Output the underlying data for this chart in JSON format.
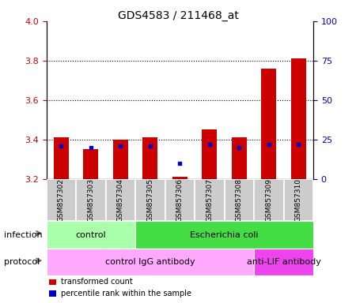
{
  "title": "GDS4583 / 211468_at",
  "samples": [
    "GSM857302",
    "GSM857303",
    "GSM857304",
    "GSM857305",
    "GSM857306",
    "GSM857307",
    "GSM857308",
    "GSM857309",
    "GSM857310"
  ],
  "transformed_count": [
    3.41,
    3.35,
    3.4,
    3.41,
    3.21,
    3.45,
    3.41,
    3.76,
    3.81
  ],
  "percentile_rank": [
    21,
    20,
    21,
    21,
    10,
    22,
    20,
    22,
    22
  ],
  "ylim_left": [
    3.2,
    4.0
  ],
  "ylim_right": [
    0,
    100
  ],
  "yticks_left": [
    3.2,
    3.4,
    3.6,
    3.8,
    4.0
  ],
  "yticks_right": [
    0,
    25,
    50,
    75,
    100
  ],
  "infection_groups": [
    {
      "label": "control",
      "start": 0,
      "end": 3,
      "color": "#aaffaa"
    },
    {
      "label": "Escherichia coli",
      "start": 3,
      "end": 9,
      "color": "#44dd44"
    }
  ],
  "protocol_groups": [
    {
      "label": "control IgG antibody",
      "start": 0,
      "end": 7,
      "color": "#ffaaff"
    },
    {
      "label": "anti-LIF antibody",
      "start": 7,
      "end": 9,
      "color": "#ee44ee"
    }
  ],
  "legend_red_label": "transformed count",
  "legend_blue_label": "percentile rank within the sample",
  "bar_color": "#cc0000",
  "dot_color": "#0000cc",
  "bar_width": 0.5,
  "tick_color_left": "#cc0000",
  "tick_color_right": "#0000cc",
  "bg_color_samples": "#cccccc",
  "infection_label": "infection",
  "protocol_label": "protocol"
}
